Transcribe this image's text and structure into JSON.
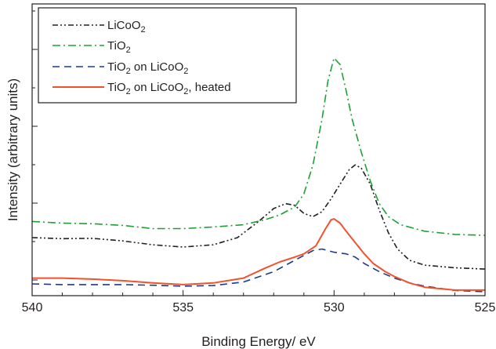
{
  "chart_data": {
    "type": "line",
    "title": "",
    "xlabel": "Binding Energy/ eV",
    "ylabel": "Intensity (arbitrary units)",
    "xlim": [
      540,
      525
    ],
    "x_reversed": true,
    "xticks": [
      "540",
      "535",
      "530",
      "525"
    ],
    "ylim": [
      0,
      100
    ],
    "yticks_labeled": false,
    "grid": false,
    "legend_position": "top-left",
    "legend": [
      {
        "base": "LiCoO",
        "sub": "2",
        "tail": ""
      },
      {
        "base": "TiO",
        "sub": "2",
        "tail": ""
      },
      {
        "base": "TiO",
        "sub": "2",
        "tail": " on LiCoO",
        "sub2": "2",
        "tail2": ""
      },
      {
        "base": "TiO",
        "sub": "2",
        "tail": " on LiCoO",
        "sub2": "2",
        "tail2": ", heated"
      }
    ],
    "series": [
      {
        "name": "LiCoO2",
        "color": "#231f20",
        "dash": "dash-dot-dot",
        "points": [
          [
            540,
            15.5
          ],
          [
            539,
            15.2
          ],
          [
            538,
            15.3
          ],
          [
            537,
            14.5
          ],
          [
            536,
            13.3
          ],
          [
            535,
            12.6
          ],
          [
            534,
            13.3
          ],
          [
            533.2,
            15.5
          ],
          [
            532.5,
            20.5
          ],
          [
            532,
            24.5
          ],
          [
            531.6,
            26
          ],
          [
            531.3,
            25.5
          ],
          [
            531,
            23
          ],
          [
            530.7,
            22
          ],
          [
            530.4,
            23.5
          ],
          [
            530.1,
            27.5
          ],
          [
            529.8,
            32
          ],
          [
            529.5,
            36.5
          ],
          [
            529.3,
            38
          ],
          [
            529.1,
            37
          ],
          [
            528.8,
            32
          ],
          [
            528.5,
            24
          ],
          [
            528.2,
            17
          ],
          [
            527.9,
            12
          ],
          [
            527.5,
            8.5
          ],
          [
            527,
            7
          ],
          [
            526,
            6.2
          ],
          [
            525,
            5.8
          ]
        ]
      },
      {
        "name": "TiO2",
        "color": "#1fa037",
        "dash": "dash-dot",
        "points": [
          [
            540,
            20.5
          ],
          [
            539,
            20
          ],
          [
            538,
            19.8
          ],
          [
            537,
            19.3
          ],
          [
            536,
            18.3
          ],
          [
            535,
            18.3
          ],
          [
            534,
            18.8
          ],
          [
            533,
            19.5
          ],
          [
            532.3,
            21
          ],
          [
            531.8,
            22.5
          ],
          [
            531.3,
            25
          ],
          [
            531,
            29
          ],
          [
            530.7,
            38
          ],
          [
            530.4,
            52
          ],
          [
            530.2,
            64
          ],
          [
            530,
            71
          ],
          [
            529.8,
            69
          ],
          [
            529.6,
            61
          ],
          [
            529.4,
            52
          ],
          [
            529.1,
            42
          ],
          [
            528.8,
            33
          ],
          [
            528.5,
            26
          ],
          [
            528.2,
            22
          ],
          [
            527.8,
            19.5
          ],
          [
            527,
            17.5
          ],
          [
            526,
            16.5
          ],
          [
            525,
            16.2
          ]
        ]
      },
      {
        "name": "TiO2 on LiCoO2",
        "color": "#1c3d8a",
        "dash": "dash",
        "points": [
          [
            540,
            1.2
          ],
          [
            539,
            1
          ],
          [
            538,
            1
          ],
          [
            537,
            1
          ],
          [
            536,
            0.8
          ],
          [
            535,
            0.5
          ],
          [
            534,
            0.7
          ],
          [
            533,
            1.8
          ],
          [
            532,
            5
          ],
          [
            531.5,
            7.5
          ],
          [
            531,
            10
          ],
          [
            530.7,
            11.5
          ],
          [
            530.4,
            12
          ],
          [
            530,
            11
          ],
          [
            529.6,
            10.5
          ],
          [
            529.3,
            9.5
          ],
          [
            529,
            7.5
          ],
          [
            528.5,
            5
          ],
          [
            528,
            3
          ],
          [
            527.5,
            1.5
          ],
          [
            527,
            0.5
          ],
          [
            526,
            -0.8
          ],
          [
            525,
            -1.2
          ]
        ]
      },
      {
        "name": "TiO2 on LiCoO2, heated",
        "color": "#f0522d",
        "dash": "solid",
        "points": [
          [
            540,
            3
          ],
          [
            539,
            3
          ],
          [
            538,
            2.7
          ],
          [
            537,
            2.2
          ],
          [
            536,
            1.5
          ],
          [
            535,
            1
          ],
          [
            534,
            1.5
          ],
          [
            533,
            3
          ],
          [
            532.3,
            6
          ],
          [
            531.8,
            8
          ],
          [
            531.3,
            9.5
          ],
          [
            531,
            10.5
          ],
          [
            530.6,
            13
          ],
          [
            530.3,
            18
          ],
          [
            530.1,
            21
          ],
          [
            530,
            21.3
          ],
          [
            529.8,
            20
          ],
          [
            529.6,
            17.5
          ],
          [
            529.3,
            14
          ],
          [
            529,
            10.5
          ],
          [
            528.7,
            7.5
          ],
          [
            528.3,
            5
          ],
          [
            528,
            3.5
          ],
          [
            527.5,
            1.5
          ],
          [
            527,
            0.2
          ],
          [
            526,
            -0.7
          ],
          [
            525,
            -0.7
          ]
        ]
      }
    ]
  }
}
